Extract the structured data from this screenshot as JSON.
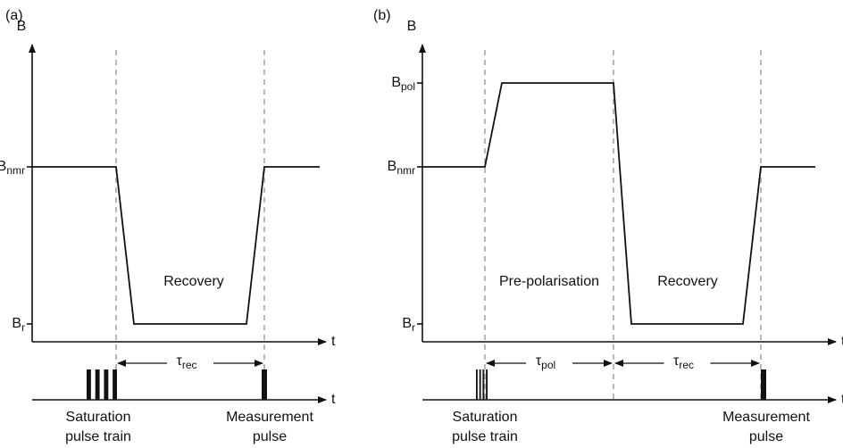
{
  "panels": [
    {
      "label": "(a)",
      "y_axis": "B",
      "x_axis": "t",
      "levels": [
        {
          "base": "B",
          "sub": "nmr"
        },
        {
          "base": "B",
          "sub": "r"
        }
      ],
      "phases": [
        "Recovery"
      ],
      "intervals": [
        {
          "base": "τ",
          "sub": "rec"
        }
      ],
      "pulse_axis": "t",
      "pulse_labels": [
        [
          "Saturation",
          "pulse train"
        ],
        [
          "Measurement",
          "pulse"
        ]
      ]
    },
    {
      "label": "(b)",
      "y_axis": "B",
      "x_axis": "t",
      "levels": [
        {
          "base": "B",
          "sub": "pol"
        },
        {
          "base": "B",
          "sub": "nmr"
        },
        {
          "base": "B",
          "sub": "r"
        }
      ],
      "phases": [
        "Pre-polarisation",
        "Recovery"
      ],
      "intervals": [
        {
          "base": "τ",
          "sub": "pol"
        },
        {
          "base": "τ",
          "sub": "rec"
        }
      ],
      "pulse_axis": "t",
      "pulse_labels": [
        [
          "Saturation",
          "pulse train"
        ],
        [
          "Measurement",
          "pulse"
        ]
      ]
    }
  ]
}
